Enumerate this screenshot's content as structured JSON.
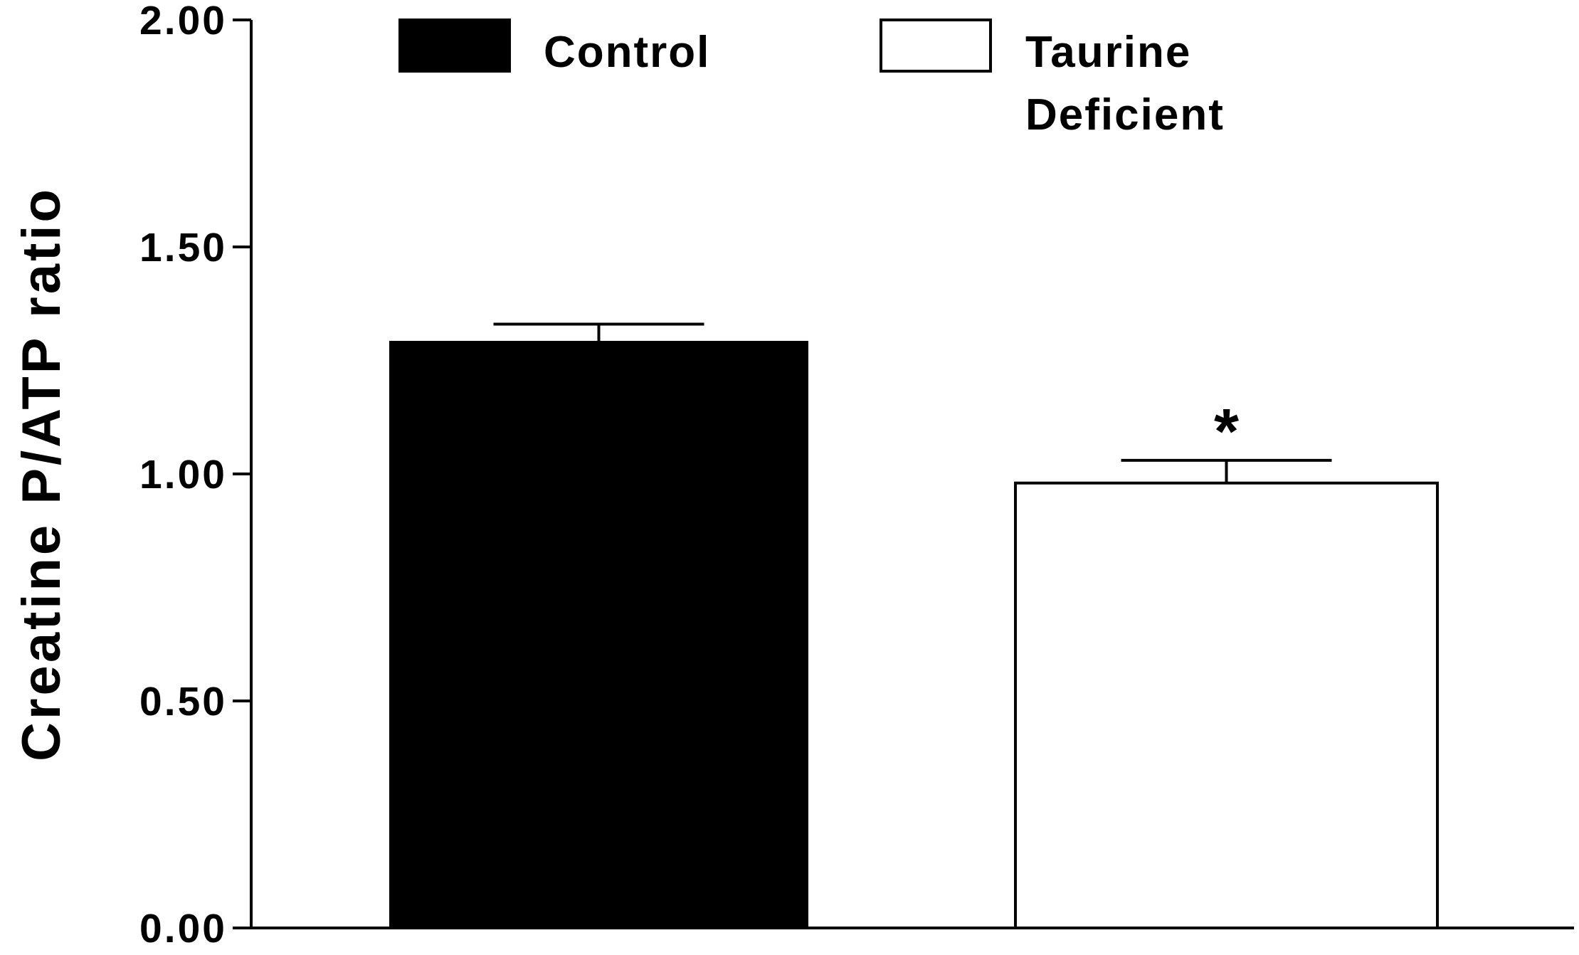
{
  "chart_data": {
    "type": "bar",
    "y_label": "Creatine P/ATP ratio",
    "series": [
      {
        "name": "Control",
        "color": "#000000",
        "values": [
          1.29
        ],
        "errors": [
          0.04
        ]
      },
      {
        "name": "Taurine Deficient",
        "color": "#ffffff",
        "values": [
          0.98
        ],
        "errors": [
          0.05
        ]
      }
    ],
    "annotation": "*",
    "ylim": [
      0,
      2
    ],
    "yticks": [
      {
        "value": 0,
        "label": "0.00"
      },
      {
        "value": 0.5,
        "label": "0.50"
      },
      {
        "value": 1,
        "label": "1.00"
      },
      {
        "value": 1.5,
        "label": "1.50"
      },
      {
        "value": 2,
        "label": "2.00"
      }
    ],
    "grid": false
  }
}
